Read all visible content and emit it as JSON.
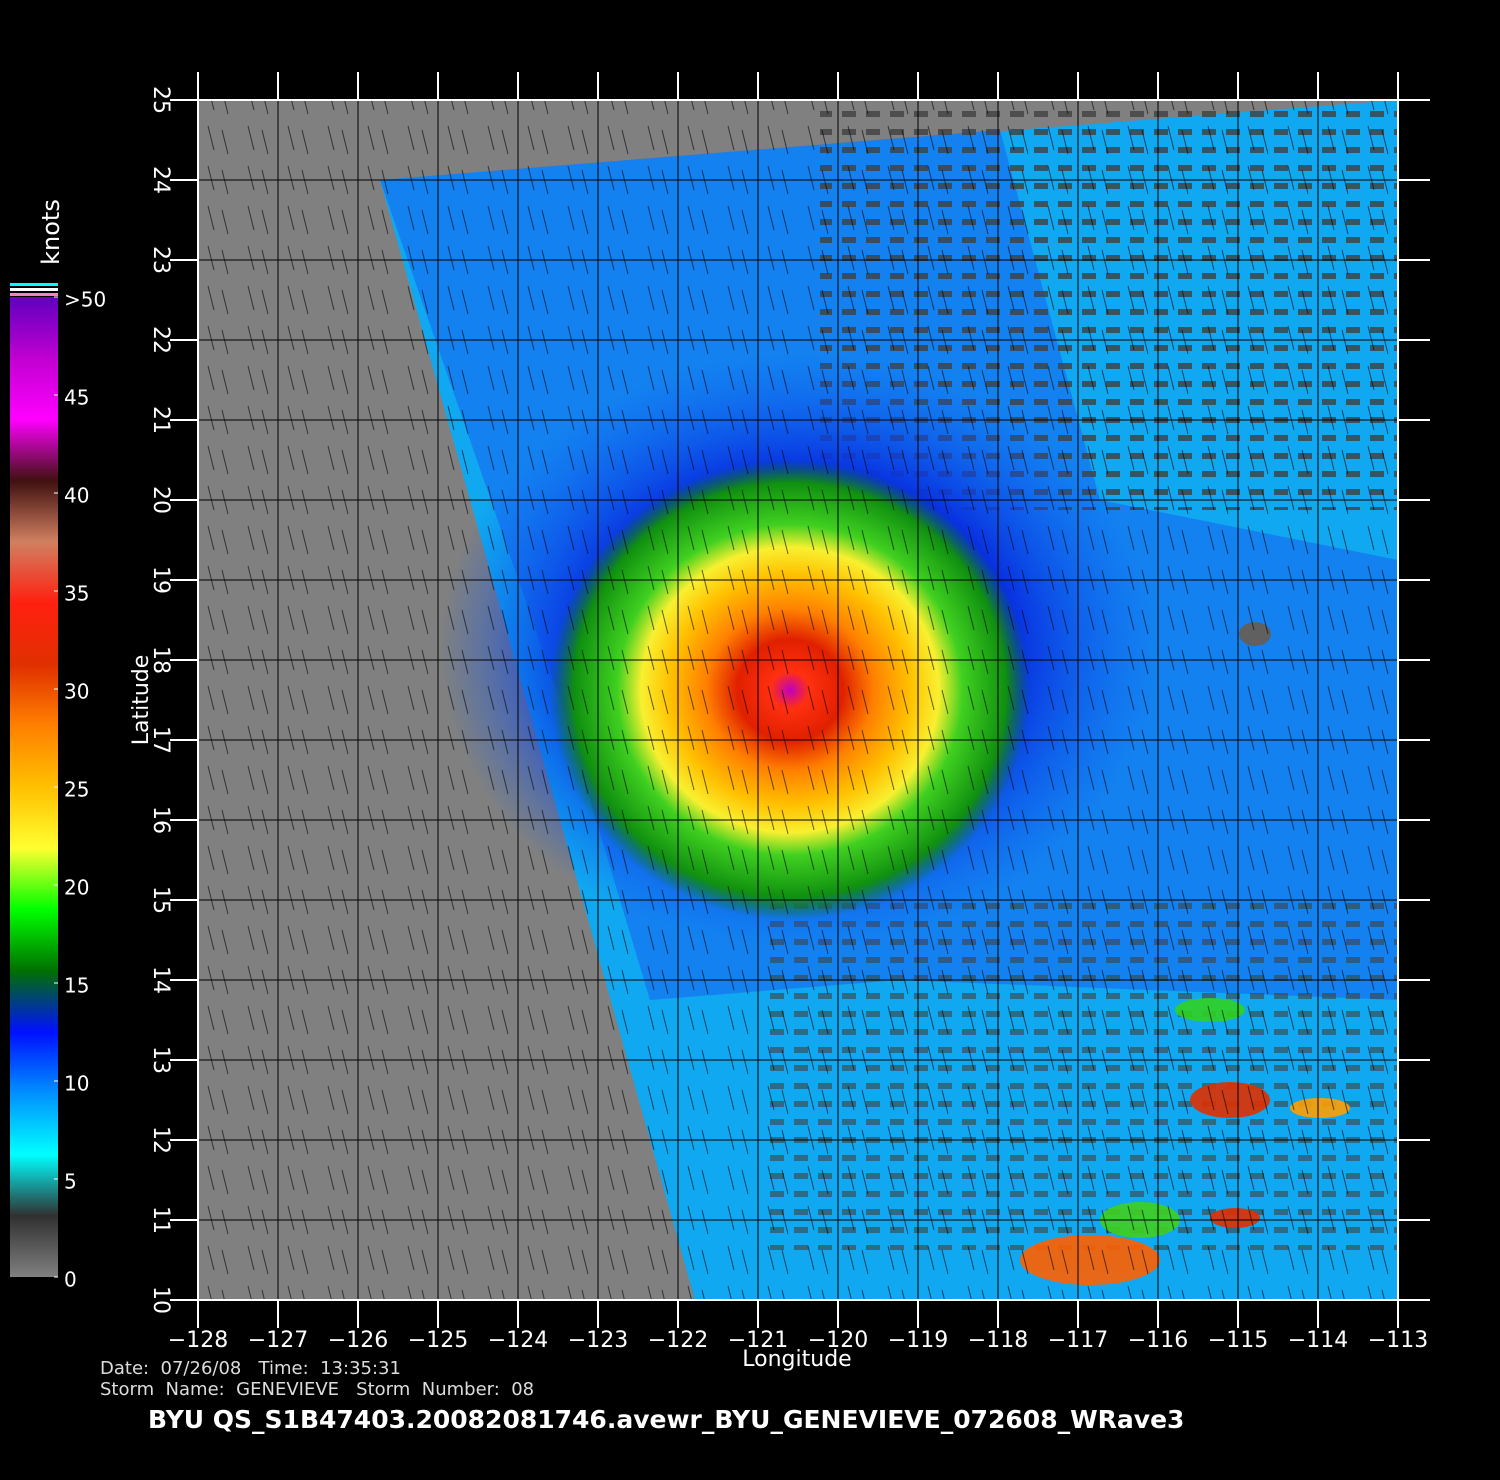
{
  "map": {
    "xlabel": "Longitude",
    "ylabel": "Latitude",
    "xlim": [
      -128,
      -113
    ],
    "ylim": [
      10,
      25
    ],
    "xticks": [
      {
        "value": -128,
        "label": "−128"
      },
      {
        "value": -127,
        "label": "−127"
      },
      {
        "value": -126,
        "label": "−126"
      },
      {
        "value": -125,
        "label": "−125"
      },
      {
        "value": -124,
        "label": "−124"
      },
      {
        "value": -123,
        "label": "−123"
      },
      {
        "value": -122,
        "label": "−122"
      },
      {
        "value": -121,
        "label": "−121"
      },
      {
        "value": -120,
        "label": "−120"
      },
      {
        "value": -119,
        "label": "−119"
      },
      {
        "value": -118,
        "label": "−118"
      },
      {
        "value": -117,
        "label": "−117"
      },
      {
        "value": -116,
        "label": "−116"
      },
      {
        "value": -115,
        "label": "−115"
      },
      {
        "value": -114,
        "label": "−114"
      },
      {
        "value": -113,
        "label": "−113"
      }
    ],
    "yticks": [
      10,
      11,
      12,
      13,
      14,
      15,
      16,
      17,
      18,
      19,
      20,
      21,
      22,
      23,
      24,
      25
    ],
    "grid": true
  },
  "colorbar": {
    "title": "knots",
    "lim": [
      0,
      50
    ],
    "ticks": [
      0,
      5,
      10,
      15,
      20,
      25,
      30,
      35,
      40,
      45,
      {
        "value": 50,
        "label": ">50"
      }
    ],
    "colors": [
      "#808080",
      "#303030",
      "#00ffff",
      "#0090ff",
      "#0010ff",
      "#007000",
      "#00ff00",
      "#ffff30",
      "#ffc000",
      "#ff8000",
      "#e03000",
      "#ff2010",
      "#d08060",
      "#401010",
      "#ff00ff",
      "#c000d0",
      "#6000c0"
    ]
  },
  "footer": {
    "date_line": "Date:  07/26/08   Time:  13:35:31",
    "storm_line": "Storm  Name:  GENEVIEVE   Storm  Number:  08",
    "file_name": "BYU  QS_S1B47403.20082081746.avewr_BYU_GENEVIEVE_072608_WRave3"
  }
}
